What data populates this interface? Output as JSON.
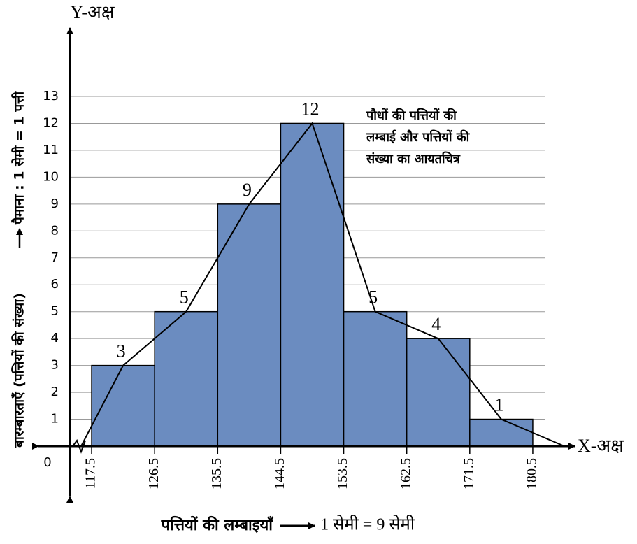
{
  "chart_data": {
    "type": "histogram",
    "y_axis_name": "Y-अक्ष",
    "x_axis_name": "X-अक्ष",
    "origin_label": "0",
    "y_axis_label": "बारम्बारताएँ (पत्तियों की संख्या)",
    "y_axis_scale": "पैमाना : 1 सेमी = 1 पत्ती",
    "x_axis_label": "पत्तियों की लम्बाइयाँ",
    "x_axis_scale": "1 सेमी = 9 सेमी",
    "annotation": [
      "पौधों की पत्तियों की",
      "लम्बाई और पत्तियों की",
      "संख्या का आयतचित्र"
    ],
    "bins": [
      117.5,
      126.5,
      135.5,
      144.5,
      153.5,
      162.5,
      171.5,
      180.5
    ],
    "values": [
      3,
      5,
      9,
      12,
      5,
      4,
      1
    ],
    "color": "#6b8cc0",
    "polygon": {
      "x": [
        116,
        122,
        131,
        140,
        149,
        158,
        167,
        176,
        185
      ],
      "values": [
        0,
        3,
        5,
        9,
        12,
        5,
        4,
        1,
        0
      ]
    },
    "xlim": [
      114,
      185
    ],
    "ylim": [
      0,
      13
    ],
    "xticks": [
      117.5,
      126.5,
      135.5,
      144.5,
      153.5,
      162.5,
      171.5,
      180.5
    ],
    "yticks": [
      1,
      2,
      3,
      4,
      5,
      6,
      7,
      8,
      9,
      10,
      11,
      12,
      13
    ],
    "grid": true
  }
}
